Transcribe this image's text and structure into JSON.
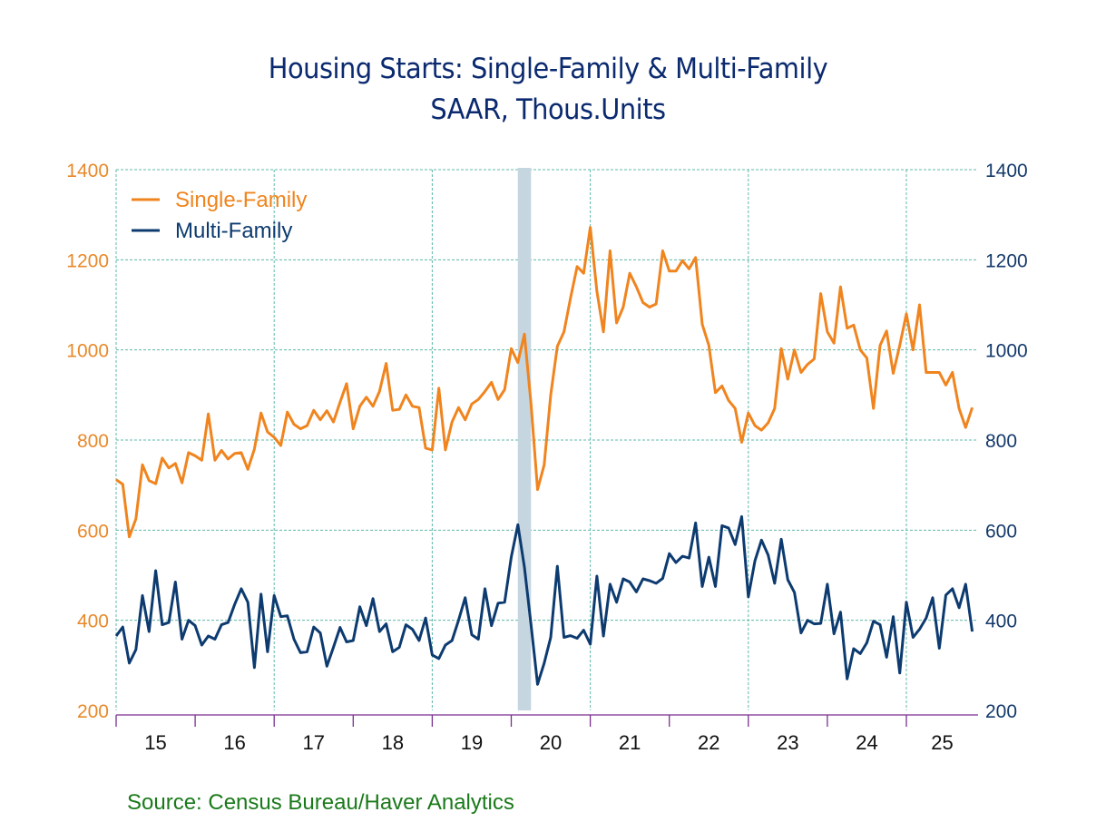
{
  "chart_data": {
    "type": "line",
    "title": "Housing Starts: Single-Family & Multi-Family",
    "subtitle": "SAAR, Thous.Units",
    "source": "Source: Census Bureau/Haver Analytics",
    "xlabel": "",
    "ylabel_left": "",
    "ylabel_right": "",
    "ylim": [
      200,
      1400
    ],
    "yticks": [
      200,
      400,
      600,
      800,
      1000,
      1200,
      1400
    ],
    "x_tick_labels": [
      "15",
      "16",
      "17",
      "18",
      "19",
      "20",
      "21",
      "22",
      "23",
      "24",
      "25"
    ],
    "x_start": "2015-01",
    "x_end_axis": "2025-11",
    "frequency": "monthly",
    "grid": true,
    "legend_position": "top-left",
    "recession_shading": {
      "start": "2020-02",
      "end": "2020-04",
      "color": "#c5d6e0"
    },
    "colors": {
      "single_family": "#f0841e",
      "multi_family": "#0d3b70",
      "left_axis": "#e8892a",
      "right_axis": "#143a6b",
      "x_axis": "#7a2f8f",
      "grid": "#5fb8a8",
      "title": "#0b2a6f",
      "source": "#1a7a1a"
    },
    "series": [
      {
        "name": "Single-Family",
        "axis": "left",
        "values": [
          712,
          702,
          585,
          625,
          745,
          710,
          703,
          760,
          738,
          748,
          705,
          772,
          765,
          755,
          858,
          755,
          777,
          758,
          770,
          772,
          735,
          780,
          860,
          818,
          806,
          788,
          862,
          835,
          825,
          832,
          866,
          845,
          865,
          840,
          884,
          925,
          825,
          875,
          895,
          875,
          908,
          970,
          866,
          868,
          900,
          875,
          872,
          782,
          778,
          915,
          778,
          840,
          872,
          845,
          880,
          890,
          908,
          928,
          890,
          912,
          1003,
          972,
          1035,
          880,
          690,
          745,
          900,
          1008,
          1040,
          1115,
          1185,
          1170,
          1272,
          1130,
          1040,
          1220,
          1060,
          1095,
          1170,
          1140,
          1105,
          1095,
          1102,
          1220,
          1175,
          1175,
          1198,
          1180,
          1205,
          1057,
          1010,
          905,
          920,
          888,
          870,
          795,
          860,
          832,
          822,
          838,
          870,
          1003,
          935,
          1000,
          950,
          968,
          980,
          1125,
          1040,
          1015,
          1140,
          1048,
          1055,
          1000,
          982,
          870,
          1010,
          1042,
          948,
          1010,
          1080,
          1000,
          1100,
          950,
          950,
          950,
          922,
          950,
          870,
          828,
          872
        ]
      },
      {
        "name": "Multi-Family",
        "axis": "right",
        "values": [
          365,
          385,
          305,
          335,
          455,
          375,
          510,
          390,
          395,
          485,
          358,
          400,
          388,
          345,
          365,
          358,
          390,
          395,
          435,
          470,
          440,
          295,
          458,
          330,
          455,
          408,
          410,
          358,
          328,
          330,
          385,
          372,
          298,
          340,
          384,
          352,
          355,
          430,
          388,
          448,
          375,
          392,
          330,
          340,
          390,
          380,
          355,
          405,
          323,
          315,
          345,
          355,
          400,
          450,
          368,
          358,
          470,
          388,
          438,
          440,
          540,
          612,
          518,
          390,
          258,
          305,
          362,
          520,
          362,
          366,
          360,
          378,
          347,
          498,
          365,
          480,
          440,
          492,
          485,
          463,
          492,
          488,
          482,
          493,
          548,
          528,
          542,
          538,
          616,
          475,
          540,
          475,
          610,
          605,
          568,
          630,
          452,
          532,
          578,
          545,
          482,
          580,
          490,
          462,
          372,
          400,
          392,
          393,
          480,
          370,
          418,
          270,
          337,
          326,
          350,
          398,
          390,
          318,
          408,
          283,
          440,
          362,
          380,
          405,
          450,
          338,
          456,
          470,
          428,
          480,
          375
        ]
      }
    ]
  },
  "legend": [
    {
      "label": "Single-Family"
    },
    {
      "label": "Multi-Family"
    }
  ]
}
